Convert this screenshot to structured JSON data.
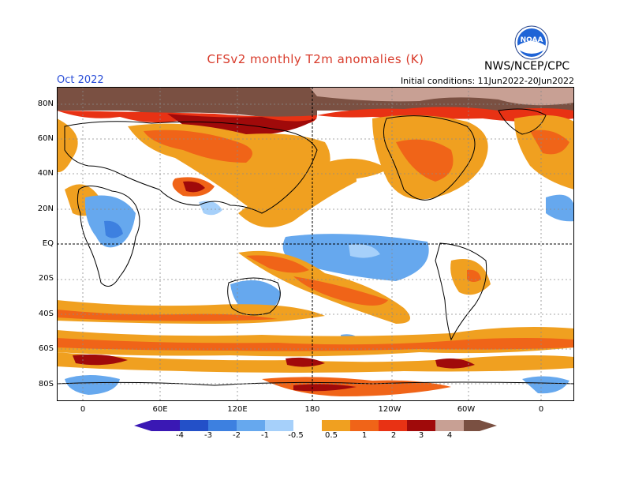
{
  "header": {
    "title": "CFSv2 monthly T2m anomalies (K)",
    "agency": "NWS/NCEP/CPC",
    "period": "Oct 2022",
    "initial_conditions": "Initial conditions: 11Jun2022-20Jun2022",
    "logo_text": "NOAA"
  },
  "colors": {
    "title": "#d83a2a",
    "period": "#2b4fd8",
    "frame": "#000000",
    "land_outline": "#000000",
    "logo_blue": "#1f64d6",
    "neg": [
      "#3a18b4",
      "#2350c8",
      "#3d80e0",
      "#66a8ee",
      "#a6d0fa"
    ],
    "pos": [
      "#ffffff",
      "#f0a020",
      "#f06418",
      "#e83214",
      "#a00a0a",
      "#c8a094",
      "#7a5042"
    ]
  },
  "axes": {
    "lat_labels": [
      "80N",
      "60N",
      "40N",
      "20N",
      "EQ",
      "20S",
      "40S",
      "60S",
      "80S"
    ],
    "lon_labels": [
      "0",
      "60E",
      "120E",
      "180",
      "120W",
      "60W",
      "0"
    ]
  },
  "legend": {
    "labels": [
      "-4",
      "-3",
      "-2",
      "-1",
      "-0.5",
      "0.5",
      "1",
      "2",
      "3",
      "4"
    ]
  }
}
